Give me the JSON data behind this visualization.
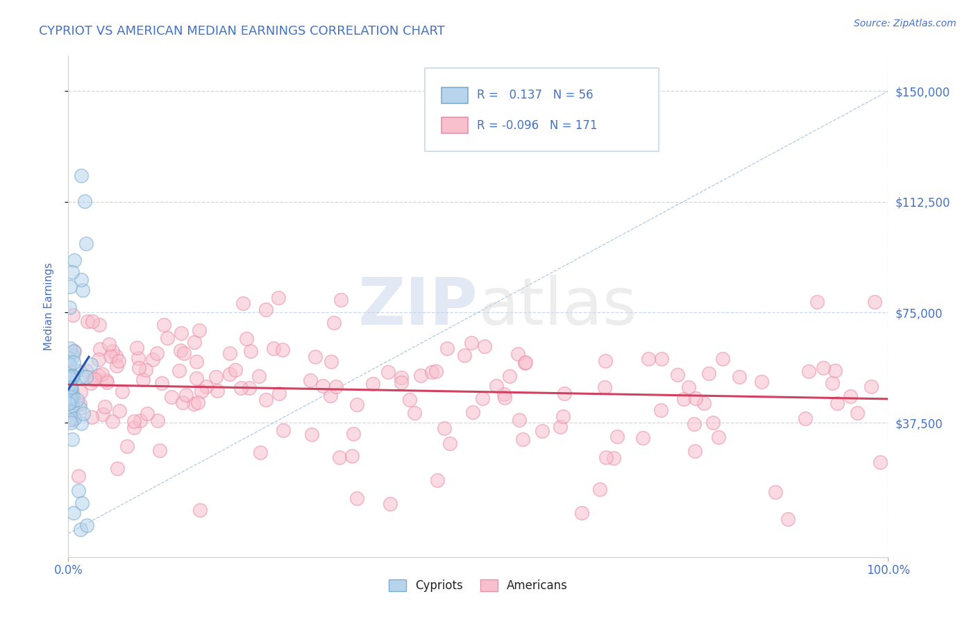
{
  "title": "CYPRIOT VS AMERICAN MEDIAN EARNINGS CORRELATION CHART",
  "source_text": "Source: ZipAtlas.com",
  "ylabel": "Median Earnings",
  "xlim": [
    0.0,
    1.0
  ],
  "ylim": [
    -8000,
    162000
  ],
  "xtick_labels": [
    "0.0%",
    "100.0%"
  ],
  "ytick_labels": [
    "$37,500",
    "$75,000",
    "$112,500",
    "$150,000"
  ],
  "ytick_values": [
    37500,
    75000,
    112500,
    150000
  ],
  "legend_r_cypriot": "0.137",
  "legend_n_cypriot": "56",
  "legend_r_american": "-0.096",
  "legend_n_american": "171",
  "color_cypriot_fill": "#b8d4ec",
  "color_cypriot_edge": "#7aaed0",
  "color_american_fill": "#f8bfcc",
  "color_american_edge": "#e890a8",
  "color_line_cypriot": "#2255aa",
  "color_line_american": "#d04060",
  "color_diag": "#8ab4d8",
  "color_title": "#4472c4",
  "color_axis_label": "#4472c4",
  "color_tick_label": "#4472c4",
  "color_source": "#4472c4",
  "watermark_zip": "ZIP",
  "watermark_atlas": "atlas",
  "background_color": "#ffffff",
  "grid_color": "#c8d8ee",
  "legend_r_color": "#4472c4",
  "legend_label_color": "#222222",
  "n_cypriot": 56,
  "n_american": 171,
  "dot_size": 200,
  "dot_alpha": 0.55,
  "dot_linewidth": 1.2
}
